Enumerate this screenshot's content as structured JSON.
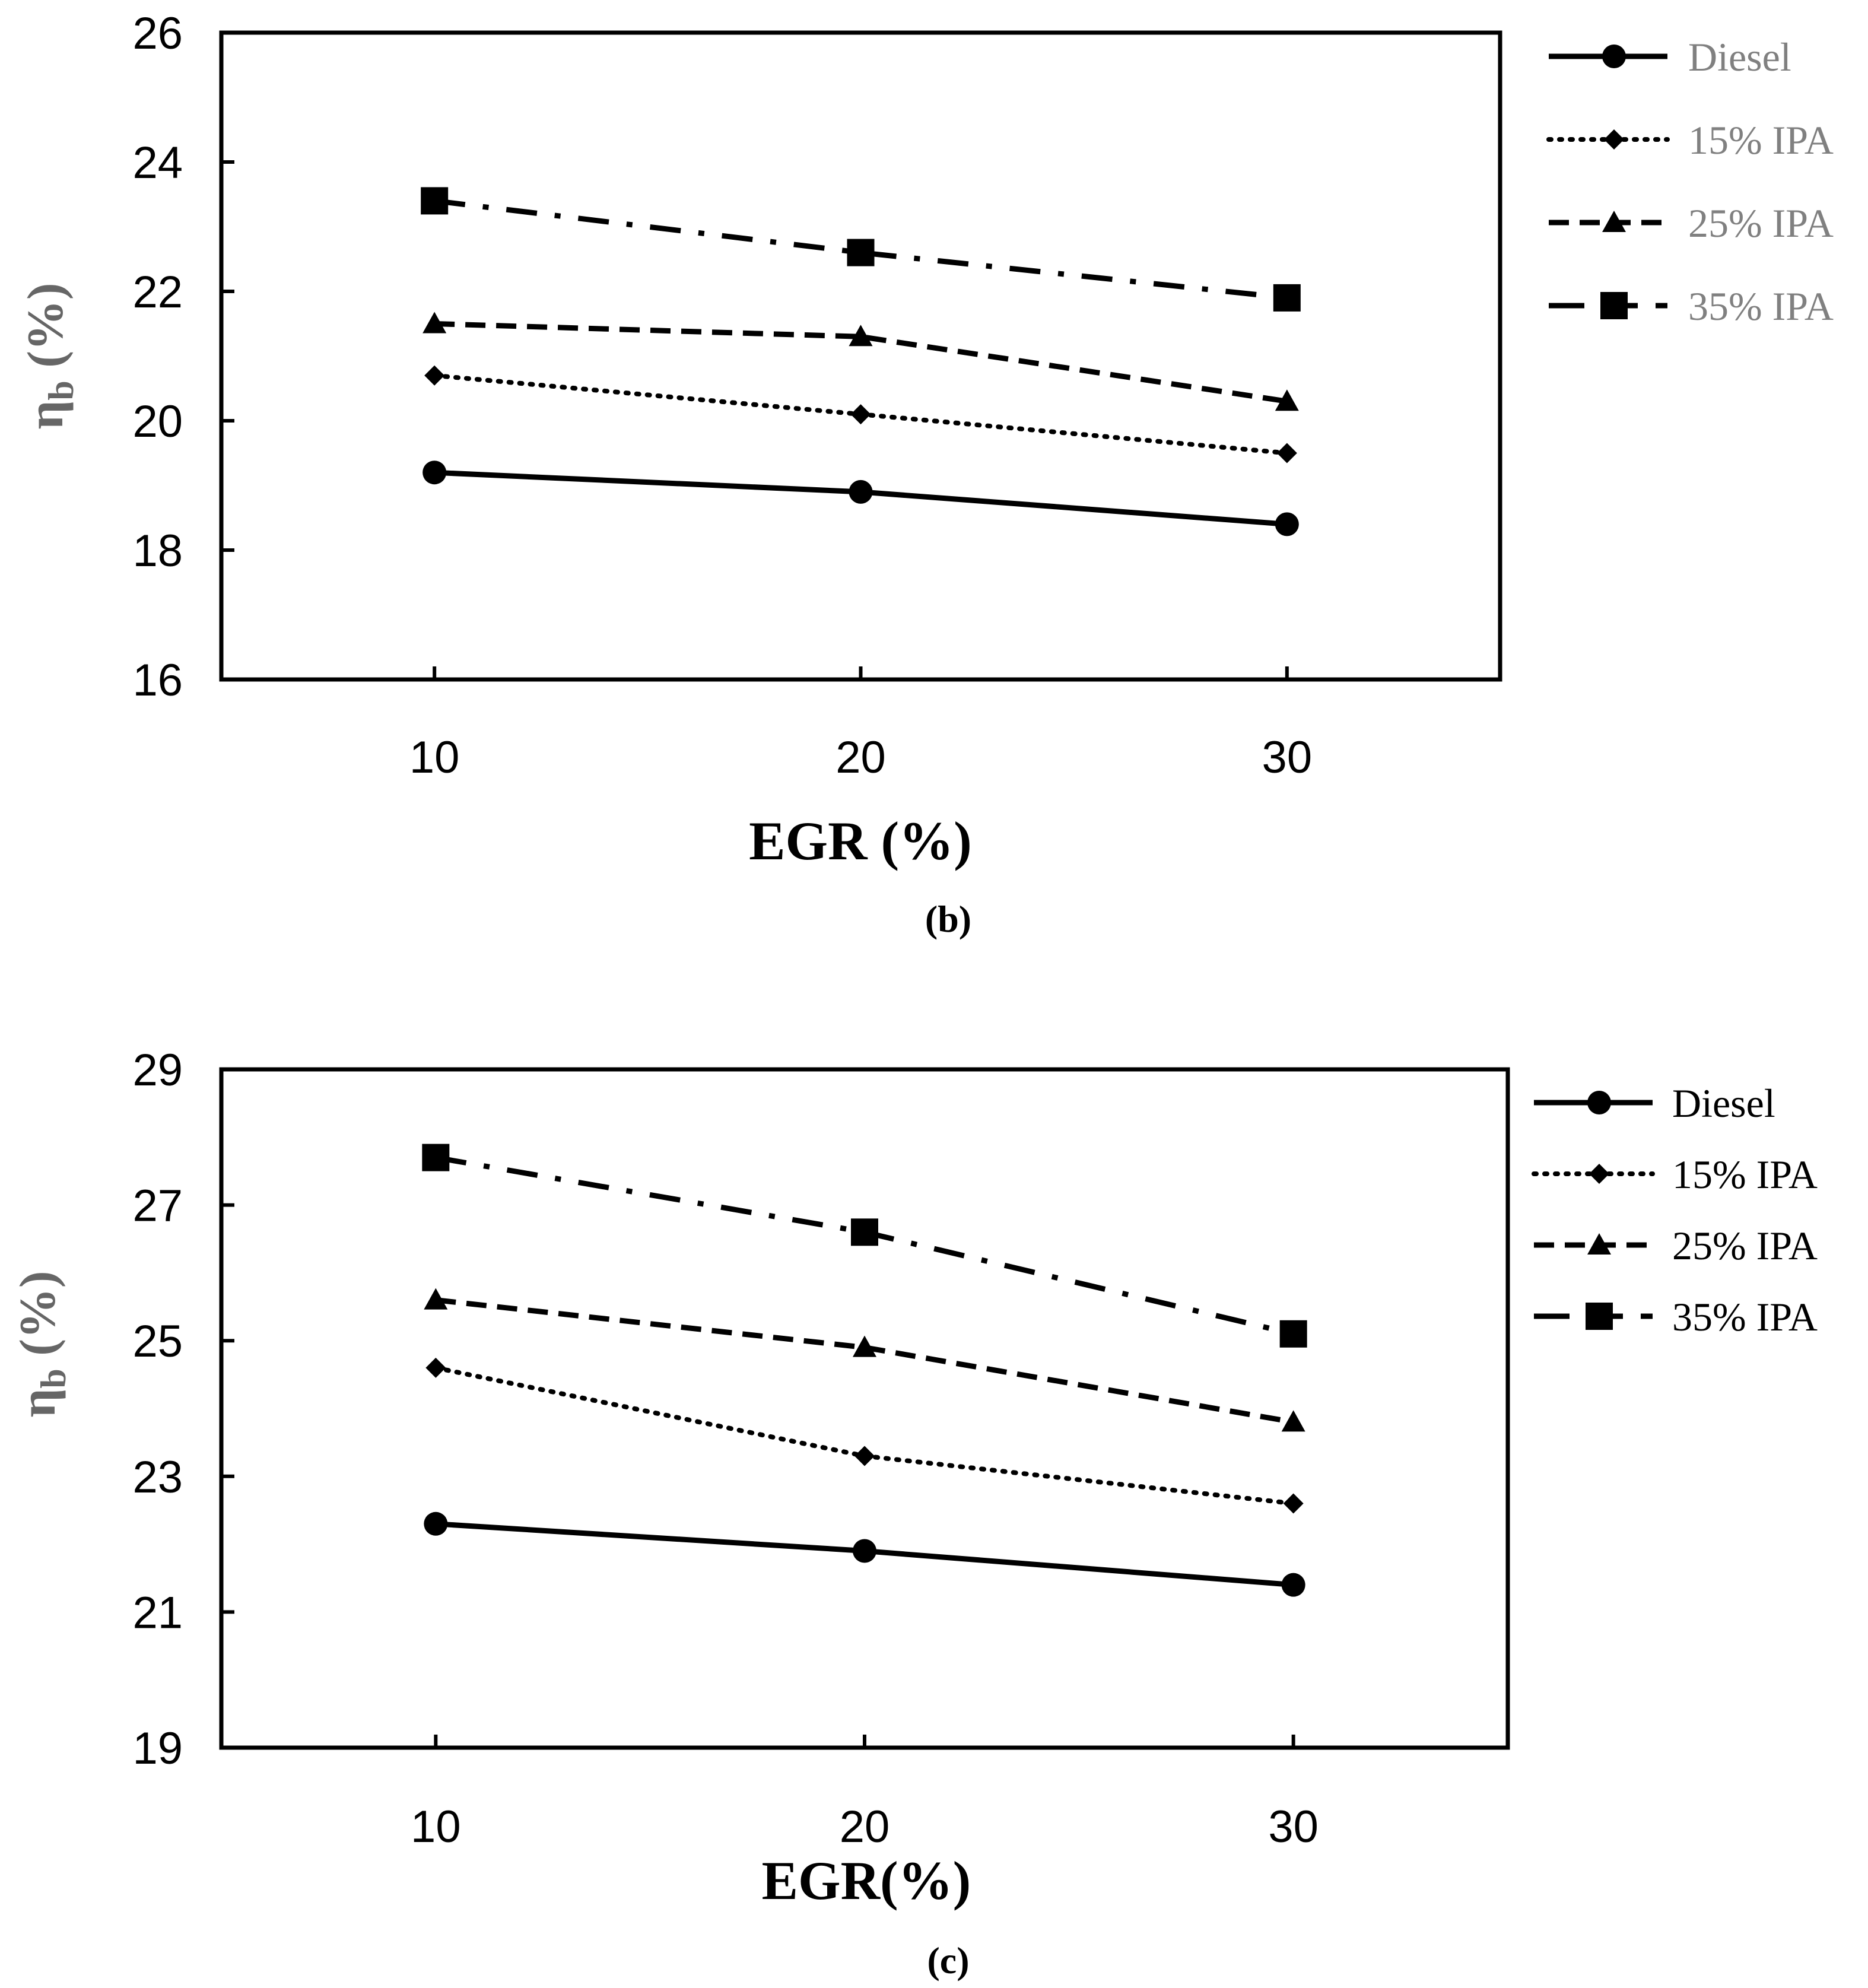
{
  "chart_data": [
    {
      "type": "line",
      "panel_label": "(b)",
      "xlabel": "EGR (%)",
      "ylabel_main": "η",
      "ylabel_sub": "b",
      "ylabel_unit": " (%)",
      "x": [
        10,
        20,
        30
      ],
      "xlim": [
        5,
        35
      ],
      "ylim": [
        16,
        26
      ],
      "yticks": [
        16,
        18,
        20,
        22,
        24,
        26
      ],
      "xticks": [
        10,
        20,
        30
      ],
      "legend_position": "right-top",
      "series": [
        {
          "name": "Diesel",
          "marker": "circle",
          "style": "solid",
          "values": [
            19.2,
            18.9,
            18.4
          ]
        },
        {
          "name": "15% IPA",
          "marker": "diamond",
          "style": "dotted",
          "values": [
            20.7,
            20.1,
            19.5
          ]
        },
        {
          "name": "25% IPA",
          "marker": "triangle",
          "style": "dashed",
          "values": [
            21.5,
            21.3,
            20.3
          ]
        },
        {
          "name": "35% IPA",
          "marker": "square",
          "style": "dashdot",
          "values": [
            23.4,
            22.6,
            21.9
          ]
        }
      ]
    },
    {
      "type": "line",
      "panel_label": "(c)",
      "xlabel": "EGR(%)",
      "ylabel_main": "η",
      "ylabel_sub": "b",
      "ylabel_unit": " (%)",
      "x": [
        10,
        20,
        30
      ],
      "xlim": [
        5,
        35
      ],
      "ylim": [
        19,
        29
      ],
      "yticks": [
        19,
        21,
        23,
        25,
        27,
        29
      ],
      "xticks": [
        10,
        20,
        30
      ],
      "legend_position": "right-top",
      "series": [
        {
          "name": "Diesel",
          "marker": "circle",
          "style": "solid",
          "values": [
            22.3,
            21.9,
            21.4
          ]
        },
        {
          "name": "15% IPA",
          "marker": "diamond",
          "style": "dotted",
          "values": [
            24.6,
            23.3,
            22.6
          ]
        },
        {
          "name": "25% IPA",
          "marker": "triangle",
          "style": "dashed",
          "values": [
            25.6,
            24.9,
            23.8
          ]
        },
        {
          "name": "35% IPA",
          "marker": "square",
          "style": "dashdot",
          "values": [
            27.7,
            26.6,
            25.1
          ]
        }
      ]
    }
  ]
}
